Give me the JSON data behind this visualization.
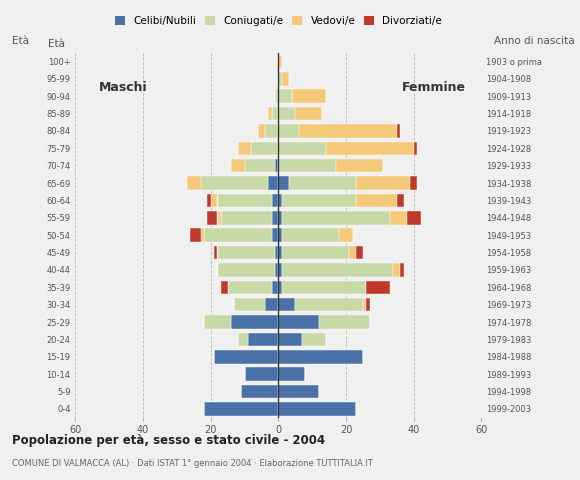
{
  "age_groups": [
    "0-4",
    "5-9",
    "10-14",
    "15-19",
    "20-24",
    "25-29",
    "30-34",
    "35-39",
    "40-44",
    "45-49",
    "50-54",
    "55-59",
    "60-64",
    "65-69",
    "70-74",
    "75-79",
    "80-84",
    "85-89",
    "90-94",
    "95-99",
    "100+"
  ],
  "birth_years": [
    "1999-2003",
    "1994-1998",
    "1989-1993",
    "1984-1988",
    "1979-1983",
    "1974-1978",
    "1969-1973",
    "1964-1968",
    "1959-1963",
    "1954-1958",
    "1949-1953",
    "1944-1948",
    "1939-1943",
    "1934-1938",
    "1929-1933",
    "1924-1928",
    "1919-1923",
    "1914-1918",
    "1909-1913",
    "1904-1908",
    "1903 o prima"
  ],
  "males": {
    "celibe": [
      22,
      11,
      10,
      19,
      9,
      14,
      4,
      2,
      1,
      1,
      2,
      2,
      2,
      3,
      1,
      0,
      0,
      0,
      0,
      0,
      0
    ],
    "coniugato": [
      0,
      0,
      0,
      0,
      3,
      8,
      9,
      13,
      17,
      17,
      20,
      15,
      16,
      20,
      9,
      8,
      4,
      2,
      1,
      0,
      0
    ],
    "vedovo": [
      0,
      0,
      0,
      0,
      0,
      0,
      0,
      0,
      0,
      0,
      1,
      1,
      2,
      4,
      4,
      4,
      2,
      1,
      0,
      0,
      0
    ],
    "divorziato": [
      0,
      0,
      0,
      0,
      0,
      0,
      0,
      2,
      0,
      1,
      3,
      3,
      1,
      0,
      0,
      0,
      0,
      0,
      0,
      0,
      0
    ]
  },
  "females": {
    "nubile": [
      23,
      12,
      8,
      25,
      7,
      12,
      5,
      1,
      1,
      1,
      1,
      1,
      1,
      3,
      0,
      0,
      0,
      0,
      0,
      0,
      0
    ],
    "coniugata": [
      0,
      0,
      0,
      0,
      7,
      15,
      20,
      25,
      33,
      20,
      17,
      32,
      22,
      20,
      17,
      14,
      6,
      5,
      4,
      1,
      0
    ],
    "vedova": [
      0,
      0,
      0,
      0,
      0,
      0,
      1,
      0,
      2,
      2,
      4,
      5,
      12,
      16,
      14,
      26,
      29,
      8,
      10,
      2,
      1
    ],
    "divorziata": [
      0,
      0,
      0,
      0,
      0,
      0,
      1,
      7,
      1,
      2,
      0,
      4,
      2,
      2,
      0,
      1,
      1,
      0,
      0,
      0,
      0
    ]
  },
  "colors": {
    "celibe": "#4a72a8",
    "coniugato": "#c8d9a8",
    "vedovo": "#f5c97a",
    "divorziato": "#c0392b"
  },
  "title": "Popolazione per età, sesso e stato civile - 2004",
  "subtitle": "COMUNE DI VALMACCA (AL) · Dati ISTAT 1° gennaio 2004 · Elaborazione TUTTITALIA.IT",
  "legend_labels": [
    "Celibi/Nubili",
    "Coniugati/e",
    "Vedovi/e",
    "Divorziati/e"
  ],
  "xlim": 60,
  "ylabel_left": "Età",
  "ylabel_right": "Anno di nascita",
  "label_male": "Maschi",
  "label_female": "Femmine",
  "bg_color": "#f0f0f0"
}
